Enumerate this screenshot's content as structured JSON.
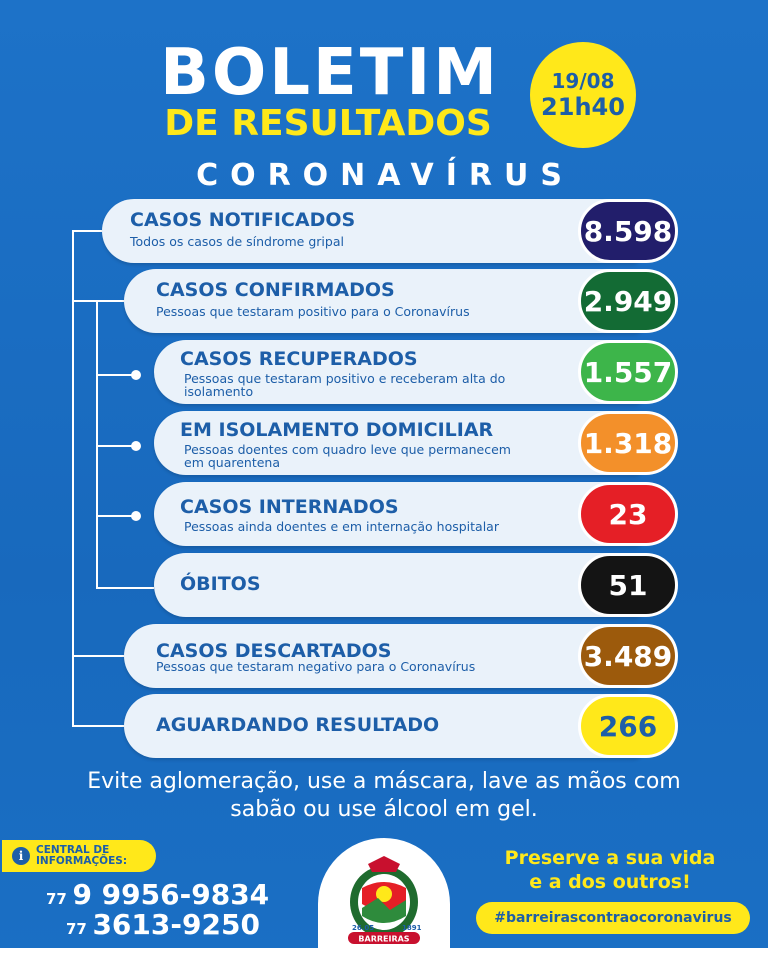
{
  "header": {
    "title": "BOLETIM",
    "subtitle": "DE RESULTADOS",
    "date": "19/08",
    "time": "21h40",
    "subject": "CORONAVÍRUS"
  },
  "rows": [
    {
      "label": "CASOS NOTIFICADOS",
      "desc1": "Todos os casos de síndrome gripal",
      "desc2": "",
      "value": "8.598",
      "color": "#221e6b"
    },
    {
      "label": "CASOS CONFIRMADOS",
      "desc1": "Pessoas que testaram positivo para o Coronavírus",
      "desc2": "",
      "value": "2.949",
      "color": "#136b34"
    },
    {
      "label": "CASOS RECUPERADOS",
      "desc1": "Pessoas que testaram positivo e receberam alta do",
      "desc2": "isolamento",
      "value": "1.557",
      "color": "#3db54a"
    },
    {
      "label": "EM ISOLAMENTO DOMICILIAR",
      "desc1": "Pessoas doentes com quadro leve que permanecem",
      "desc2": "em quarentena",
      "value": "1.318",
      "color": "#f3902a"
    },
    {
      "label": "CASOS INTERNADOS",
      "desc1": "Pessoas ainda doentes e em internação hospitalar",
      "desc2": "",
      "value": "23",
      "color": "#e51f26"
    },
    {
      "label": "ÓBITOS",
      "desc1": "",
      "desc2": "",
      "value": "51",
      "color": "#141414"
    },
    {
      "label": "CASOS DESCARTADOS",
      "desc1": "Pessoas que testaram negativo para o Coronavírus",
      "desc2": "",
      "value": "3.489",
      "color": "#9c5a0c"
    },
    {
      "label": "AGUARDANDO RESULTADO",
      "desc1": "",
      "desc2": "",
      "value": "266",
      "color": "#ffe81a"
    }
  ],
  "footer": {
    "advice_line1": "Evite aglomeração, use a máscara, lave as mãos com",
    "advice_line2": "sabão ou use álcool em gel.",
    "info_line1": "CENTRAL DE",
    "info_line2": "INFORMAÇÕES:",
    "phone1_ddd": "77",
    "phone1_num": "9 9956-9834",
    "phone2_ddd": "77",
    "phone2_num": "3613-9250",
    "preserve_line1": "Preserve a sua vida",
    "preserve_line2": "e a dos outros!",
    "hashtag": "#barreirascontraocoronavirus",
    "emblem_text": "BARREIRAS",
    "emblem_date_left": "26.05",
    "emblem_date_right": "1891"
  },
  "colors": {
    "background": "#1a6fc4",
    "accent_yellow": "#ffe81a",
    "text_blue": "#1d5ea8"
  }
}
